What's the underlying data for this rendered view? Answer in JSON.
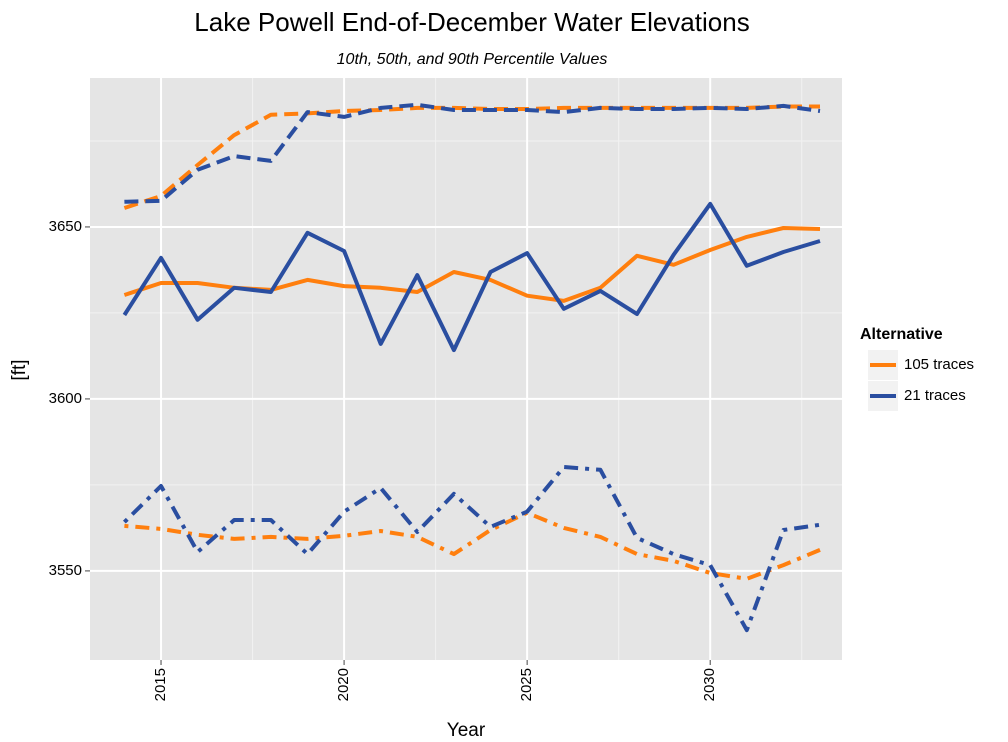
{
  "chart_data": {
    "type": "line",
    "title": "Lake Powell End-of-December Water Elevations",
    "subtitle": "10th, 50th, and 90th Percentile Values",
    "x_label": "Year",
    "y_label": "[ft]",
    "legend": {
      "title": "Alternative",
      "position": "right"
    },
    "x": [
      2014,
      2015,
      2016,
      2017,
      2018,
      2019,
      2020,
      2021,
      2022,
      2023,
      2024,
      2025,
      2026,
      2027,
      2028,
      2029,
      2030,
      2031,
      2032,
      2033
    ],
    "series": [
      {
        "name": "105 traces",
        "color": "#ff7f0e",
        "lines": [
          {
            "linetype": "dashed",
            "values": [
              3655.5,
              3659,
              3668,
              3676.7,
              3682.6,
              3683,
              3683.7,
              3684,
              3684.6,
              3684.6,
              3684.3,
              3684.3,
              3684.6,
              3684.6,
              3684.6,
              3684.6,
              3684.6,
              3684.6,
              3685,
              3685
            ]
          },
          {
            "linetype": "solid",
            "values": [
              3630.2,
              3633.7,
              3633.7,
              3632.3,
              3631.7,
              3634.6,
              3632.8,
              3632.3,
              3631.1,
              3636.9,
              3634.6,
              3630,
              3628.5,
              3632.3,
              3641.6,
              3639,
              3643.3,
              3647.1,
              3649.7,
              3649.4
            ]
          },
          {
            "linetype": "dotdash",
            "values": [
              3563.1,
              3562.2,
              3560.5,
              3559.3,
              3559.9,
              3559.3,
              3560.2,
              3561.6,
              3559.9,
              3554.9,
              3561.9,
              3566.9,
              3562.5,
              3559.9,
              3554.9,
              3552.9,
              3549.4,
              3547.7,
              3551.7,
              3556.1
            ]
          }
        ]
      },
      {
        "name": "21 traces",
        "color": "#2a4ea0",
        "lines": [
          {
            "linetype": "dashed",
            "values": [
              3657.3,
              3657.6,
              3666.6,
              3670.6,
              3669.2,
              3683.4,
              3682,
              3684.6,
              3685.5,
              3684,
              3684,
              3684,
              3683.4,
              3684.6,
              3684.3,
              3684.3,
              3684.6,
              3684.3,
              3685.2,
              3683.7
            ]
          },
          {
            "linetype": "solid",
            "values": [
              3624.4,
              3641,
              3623,
              3632.3,
              3631.1,
              3648.3,
              3643,
              3616,
              3636,
              3614.2,
              3636.9,
              3642.4,
              3626.2,
              3631.4,
              3624.7,
              3641.9,
              3656.7,
              3638.7,
              3642.7,
              3645.9
            ]
          },
          {
            "linetype": "dotdash",
            "values": [
              3564.2,
              3574.7,
              3555.5,
              3564.8,
              3564.8,
              3554.9,
              3567.2,
              3574.1,
              3561.3,
              3572.4,
              3562.8,
              3567.2,
              3580.2,
              3579.4,
              3559.6,
              3554.9,
              3551.7,
              3532.8,
              3561.9,
              3563.4
            ]
          }
        ]
      }
    ],
    "xlim": [
      2013.06,
      2033.6
    ],
    "xticks": [
      2015,
      2020,
      2025,
      2030
    ],
    "xminor": [
      2017.5,
      2022.5,
      2027.5,
      2032.5
    ],
    "ylim": [
      3524.1,
      3693.3
    ],
    "yticks": [
      3550,
      3600,
      3650
    ],
    "yminor": [
      3575,
      3625,
      3675
    ],
    "grid": true
  }
}
